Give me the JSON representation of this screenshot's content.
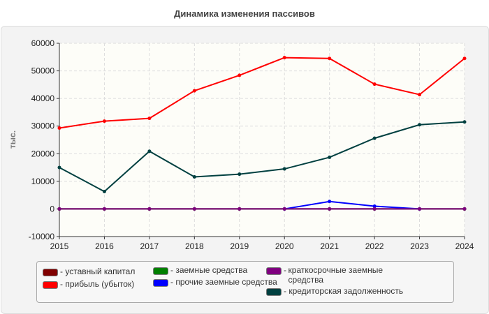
{
  "chart_data": {
    "type": "line",
    "title": "Динамика изменения пассивов",
    "ylabel": "тыс.",
    "xlabel": "",
    "x": [
      2015,
      2016,
      2017,
      2018,
      2019,
      2020,
      2021,
      2022,
      2023,
      2024
    ],
    "ylim": [
      -10000,
      60000
    ],
    "yticks": [
      60000,
      50000,
      40000,
      30000,
      20000,
      10000,
      0,
      -10000
    ],
    "grid": true,
    "legend_position": "bottom",
    "series": [
      {
        "name": "уставный капитал",
        "color": "#800000",
        "values": [
          0,
          0,
          0,
          0,
          0,
          0,
          0,
          0,
          0,
          0
        ]
      },
      {
        "name": "прибыль (убыток)",
        "color": "#ff0000",
        "values": [
          29300,
          31800,
          32800,
          42800,
          48400,
          54800,
          54500,
          45200,
          41400,
          54500
        ]
      },
      {
        "name": "заемные средства",
        "color": "#008000",
        "values": [
          0,
          0,
          0,
          0,
          0,
          0,
          0,
          0,
          0,
          0
        ]
      },
      {
        "name": "прочие заемные средства",
        "color": "#0000ff",
        "values": [
          null,
          null,
          null,
          null,
          null,
          0,
          2700,
          1000,
          0,
          null
        ]
      },
      {
        "name": "краткосрочные заемные средства",
        "color": "#800080",
        "values": [
          0,
          0,
          0,
          0,
          0,
          0,
          0,
          0,
          0,
          0
        ]
      },
      {
        "name": "кредиторская задолженность",
        "color": "#004040",
        "values": [
          15000,
          6300,
          20900,
          11600,
          12600,
          14500,
          18700,
          25600,
          30500,
          31500
        ]
      }
    ]
  }
}
